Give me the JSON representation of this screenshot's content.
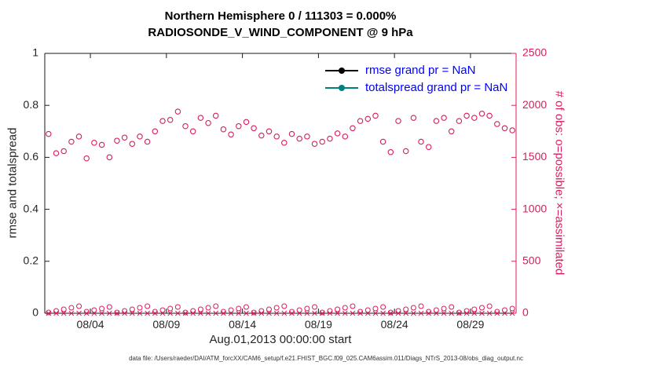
{
  "figure": {
    "title_line1": "Northern Hemisphere 0 / 111303 = 0.000%",
    "title_line2": "RADIOSONDE_V_WIND_COMPONENT @ 9 hPa",
    "x_label": "Aug.01,2013 00:00:00 start",
    "left_y_label": "rmse and totalspread",
    "right_y_label": "# of obs: o=possible; ×=assimilated",
    "caption": "data file: /Users/raeder/DAI/ATM_forcXX/CAM6_setup/f.e21.FHIST_BGC.f09_025.CAM6assim.011/Diags_NTrS_2013-08/obs_diag_output.nc",
    "colors": {
      "obs": "#d81b60",
      "teal": "#008080",
      "legend_text": "#0000ff",
      "axis": "#1a1a1a",
      "tick_text": "#262626"
    }
  },
  "legend": {
    "items": [
      {
        "label": "rmse grand pr = NaN",
        "line_color": "#000000"
      },
      {
        "label": "totalspread grand pr = NaN",
        "line_color": "#008080"
      }
    ]
  },
  "chart_data": {
    "type": "scatter",
    "title": "Northern Hemisphere 0 / 111303 = 0.000%",
    "subtitle": "RADIOSONDE_V_WIND_COMPONENT @ 9 hPa",
    "x_axis": {
      "label": "Aug.01,2013 00:00:00 start",
      "range_days": [
        1,
        32
      ],
      "tick_days": [
        4,
        9,
        14,
        19,
        24,
        29
      ],
      "tick_labels": [
        "08/04",
        "08/09",
        "08/14",
        "08/19",
        "08/24",
        "08/29"
      ],
      "start_day": 1.25,
      "step_days": 0.5
    },
    "left_axis": {
      "label": "rmse and totalspread",
      "range": [
        0,
        1
      ],
      "ticks": [
        0,
        0.2,
        0.4,
        0.6,
        0.8,
        1
      ],
      "tick_labels": [
        "0",
        "0.2",
        "0.4",
        "0.6",
        "0.8",
        "1"
      ]
    },
    "right_axis": {
      "label": "# of obs: o=possible; ×=assimilated",
      "range": [
        0,
        2500
      ],
      "ticks": [
        0,
        500,
        1000,
        1500,
        2000,
        2500
      ],
      "tick_labels": [
        "0",
        "500",
        "1000",
        "1500",
        "2000",
        "2500"
      ],
      "color": "#d81b60"
    },
    "grid": false,
    "legend_position": "upper-center-right, no box",
    "series": [
      {
        "name": "possible observations (o)",
        "marker": "o",
        "color": "#d81b60",
        "axis": "right",
        "values": [
          1725,
          1540,
          1560,
          1650,
          1700,
          1490,
          1640,
          1620,
          1500,
          1660,
          1690,
          1630,
          1700,
          1650,
          1750,
          1850,
          1860,
          1940,
          1800,
          1750,
          1880,
          1830,
          1900,
          1770,
          1720,
          1800,
          1840,
          1780,
          1710,
          1750,
          1700,
          1640,
          1725,
          1680,
          1700,
          1630,
          1650,
          1680,
          1730,
          1700,
          1780,
          1850,
          1870,
          1900,
          1650,
          1550,
          1850,
          1560,
          1880,
          1650,
          1600,
          1850,
          1880,
          1750,
          1850,
          1900,
          1880,
          1920,
          1900,
          1820,
          1780,
          1760
        ]
      },
      {
        "name": "assimilated observations (×)",
        "marker": "x",
        "color": "#d81b60",
        "axis": "right",
        "constant_value": 0,
        "count": 62
      },
      {
        "name": "rmse",
        "marker": "filled-circle-line",
        "color": "#000000",
        "axis": "left",
        "grand_value": "NaN",
        "values": []
      },
      {
        "name": "totalspread",
        "marker": "filled-circle-line",
        "color": "#008080",
        "axis": "left",
        "grand_value": "NaN",
        "values": []
      }
    ]
  }
}
